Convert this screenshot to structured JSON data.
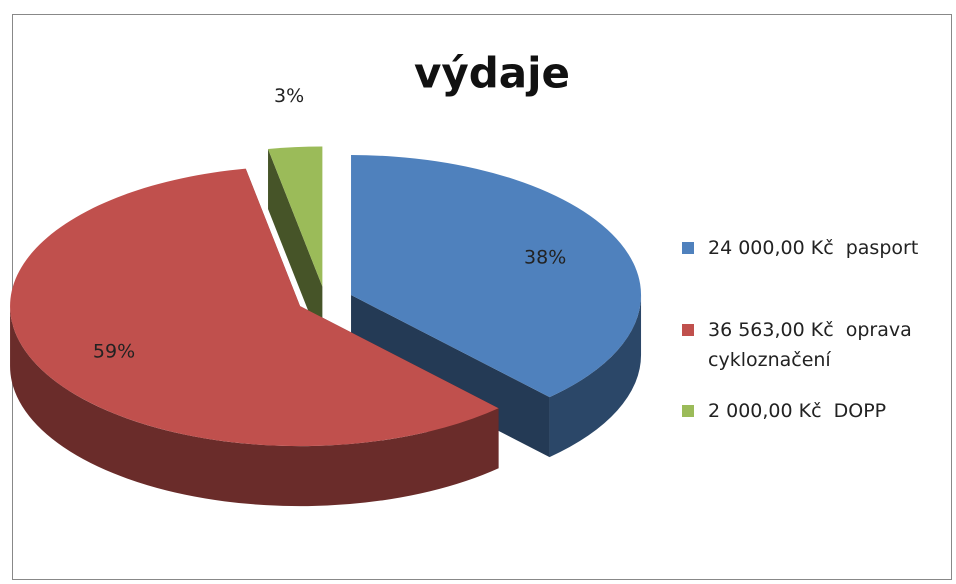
{
  "chart_data": {
    "type": "pie3d",
    "title": "výdaje",
    "categories": [
      "24 000,00 Kč  pasport",
      "36 563,00 Kč  oprava cykloznačení",
      "2 000,00 Kč  DOPP"
    ],
    "values": [
      38,
      59,
      3
    ],
    "value_labels": [
      "38%",
      "59%",
      "3%"
    ],
    "colors": [
      "#4f81bd",
      "#c0504d",
      "#9bbb59"
    ],
    "legend": "right"
  }
}
